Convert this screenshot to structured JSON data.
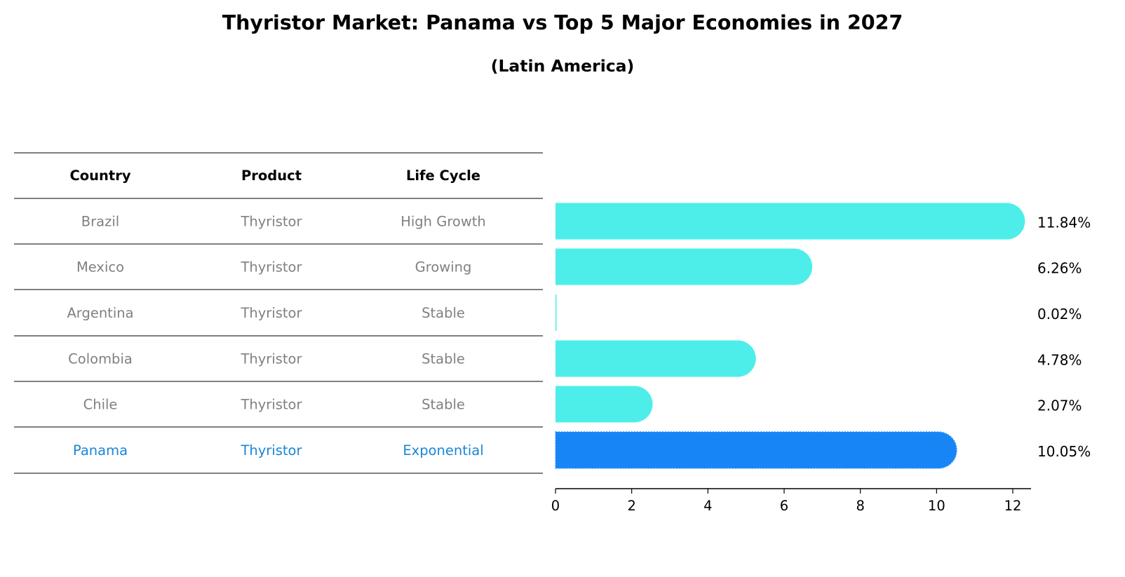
{
  "title": "Thyristor Market: Panama vs Top 5 Major Economies in 2027",
  "subtitle": "(Latin America)",
  "colors": {
    "bar": "#4deeea",
    "highlight_bar": "#1785f5",
    "highlight_text": "#1a86d6",
    "text_muted": "#808080"
  },
  "table": {
    "headers": [
      "Country",
      "Product",
      "Life Cycle"
    ],
    "rows": [
      {
        "country": "Brazil",
        "product": "Thyristor",
        "life_cycle": "High Growth",
        "highlight": false
      },
      {
        "country": "Mexico",
        "product": "Thyristor",
        "life_cycle": "Growing",
        "highlight": false
      },
      {
        "country": "Argentina",
        "product": "Thyristor",
        "life_cycle": "Stable",
        "highlight": false
      },
      {
        "country": "Colombia",
        "product": "Thyristor",
        "life_cycle": "Stable",
        "highlight": false
      },
      {
        "country": "Chile",
        "product": "Thyristor",
        "life_cycle": "Stable",
        "highlight": false
      },
      {
        "country": "Panama",
        "product": "Thyristor",
        "life_cycle": "Exponential",
        "highlight": true
      }
    ]
  },
  "chart_data": {
    "type": "bar",
    "orientation": "horizontal",
    "categories": [
      "Brazil",
      "Mexico",
      "Argentina",
      "Colombia",
      "Chile",
      "Panama"
    ],
    "values": [
      11.84,
      6.26,
      0.02,
      4.78,
      2.07,
      10.05
    ],
    "value_labels": [
      "11.84%",
      "6.26%",
      "0.02%",
      "4.78%",
      "2.07%",
      "10.05%"
    ],
    "highlight_category": "Panama",
    "xlim": [
      0,
      12.45
    ],
    "xticks": [
      0,
      2,
      4,
      6,
      8,
      10,
      12
    ],
    "xlabel": "",
    "ylabel": "",
    "grid": false,
    "legend": "none"
  }
}
